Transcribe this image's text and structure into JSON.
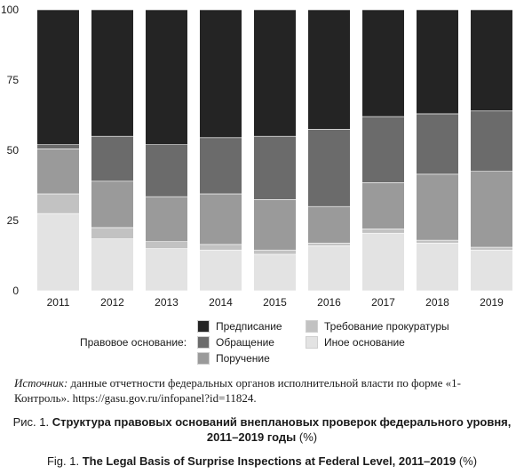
{
  "chart_data": {
    "type": "bar",
    "stacked": true,
    "categories": [
      "2011",
      "2012",
      "2013",
      "2014",
      "2015",
      "2016",
      "2017",
      "2018",
      "2019"
    ],
    "series": [
      {
        "name": "Иное основание",
        "color": "#e3e3e3",
        "values": [
          27.5,
          18.5,
          15,
          14.5,
          13,
          16,
          20.5,
          17,
          14.5
        ]
      },
      {
        "name": "Требование прокуратуры",
        "color": "#c2c2c2",
        "values": [
          7,
          4,
          2.5,
          2,
          1.5,
          1,
          1.5,
          1,
          1
        ]
      },
      {
        "name": "Поручение",
        "color": "#9a9a9a",
        "values": [
          16,
          16.5,
          16,
          18,
          18,
          13,
          16.5,
          23.5,
          27
        ]
      },
      {
        "name": "Обращение",
        "color": "#6b6b6b",
        "values": [
          1.5,
          16,
          18.5,
          20,
          22.5,
          27.5,
          23.5,
          21.5,
          21.5
        ]
      },
      {
        "name": "Предписание",
        "color": "#242424",
        "values": [
          48,
          45,
          48,
          45.5,
          45,
          42.5,
          38,
          37,
          36
        ]
      }
    ],
    "ylim": [
      0,
      100
    ],
    "yticks": [
      0,
      25,
      50,
      75,
      100
    ],
    "gridlines": false
  },
  "legend": {
    "title": "Правовое основание:",
    "items": [
      {
        "label": "Предписание",
        "color": "#242424"
      },
      {
        "label": "Обращение",
        "color": "#6b6b6b"
      },
      {
        "label": "Поручение",
        "color": "#9a9a9a"
      },
      {
        "label": "Требование прокуратуры",
        "color": "#c2c2c2"
      },
      {
        "label": "Иное основание",
        "color": "#e3e3e3"
      }
    ]
  },
  "source": {
    "label": "Источник:",
    "text": " данные отчетности федеральных органов исполнительной власти по форме «1-Контроль». https://gasu.gov.ru/infopanel?id=11824."
  },
  "caption_ru": {
    "prefix": "Рис. 1. ",
    "title": "Структура правовых оснований внеплановых проверок федерального уровня, 2011–2019 годы",
    "suffix": " (%)"
  },
  "caption_en": {
    "prefix": "Fig. 1. ",
    "title": "The Legal Basis of Surprise Inspections at Federal Level, 2011–2019",
    "suffix": " (%)"
  }
}
